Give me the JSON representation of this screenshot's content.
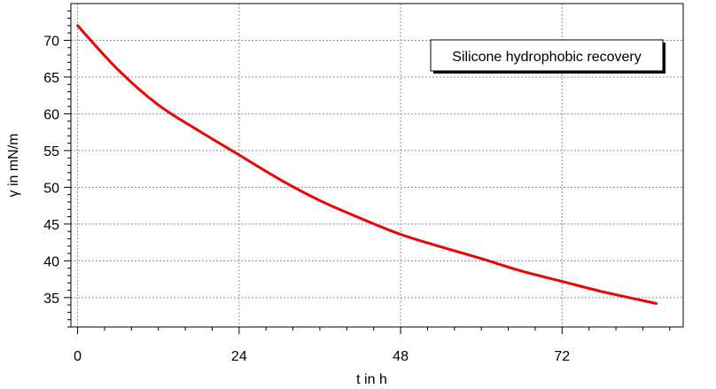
{
  "chart_data": {
    "type": "line",
    "xlabel": "t in h",
    "ylabel": "γ in mN/m",
    "xlim": [
      -1,
      90
    ],
    "ylim": [
      31,
      75
    ],
    "xticks": [
      0,
      24,
      48,
      72
    ],
    "yticks": [
      35,
      40,
      45,
      50,
      55,
      60,
      65,
      70
    ],
    "grid": true,
    "legend_placement": "top-right",
    "legend": "Silicone hydrophobic recovery",
    "colors": {
      "line": "#ee0000",
      "grid": "#8a8ad6"
    },
    "series": [
      {
        "name": "Silicone hydrophobic recovery",
        "x": [
          0,
          6,
          12,
          18,
          24,
          30,
          36,
          42,
          48,
          54,
          60,
          66,
          72,
          78,
          86
        ],
        "y": [
          72,
          66,
          61.2,
          57.7,
          54.4,
          51.1,
          48.2,
          45.8,
          43.6,
          41.9,
          40.3,
          38.6,
          37.2,
          35.8,
          34.2
        ]
      }
    ]
  }
}
